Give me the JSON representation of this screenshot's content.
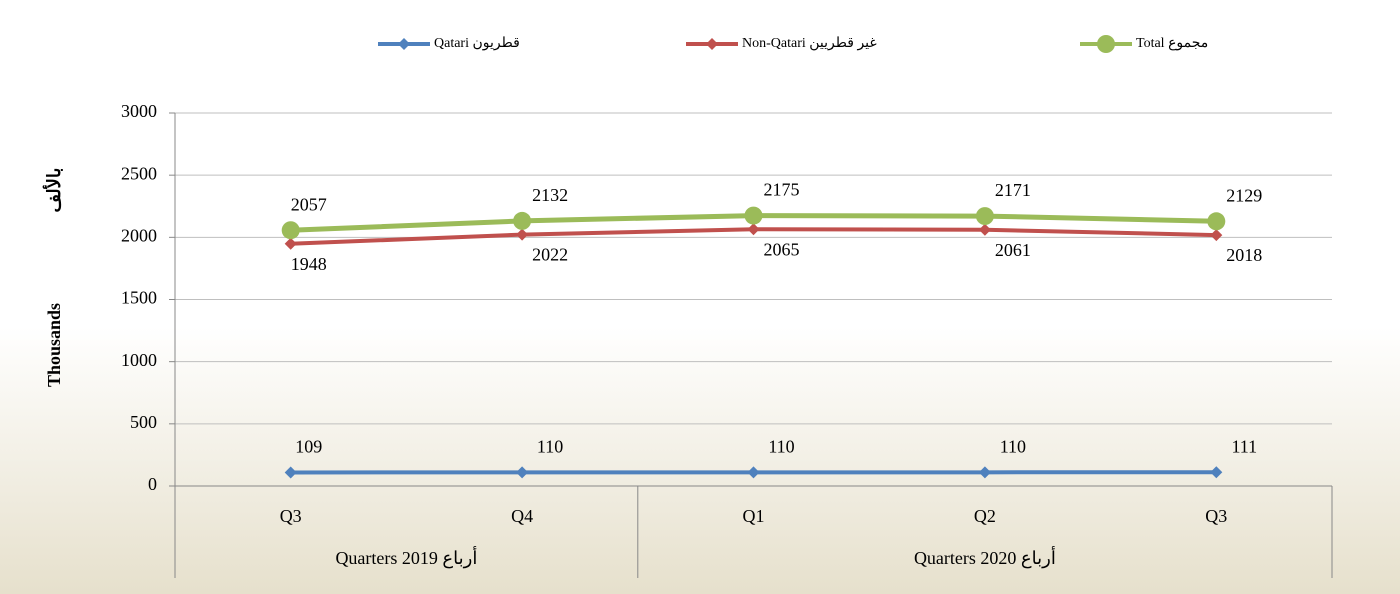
{
  "chart_data": {
    "type": "line",
    "categories": [
      "Q3",
      "Q4",
      "Q1",
      "Q2",
      "Q3"
    ],
    "groups": [
      {
        "label": "Quarters 2019 أرباع",
        "span": 2
      },
      {
        "label": "Quarters 2020 أرباع",
        "span": 3
      }
    ],
    "ylabel": "Thousands",
    "ylabel_ar": "بالألف",
    "series": [
      {
        "name": "Qatari قطريون",
        "color": "#4f81bd",
        "marker": "diamond",
        "values": [
          109,
          110,
          110,
          110,
          111
        ]
      },
      {
        "name": "Non-Qatari غير قطريين",
        "color": "#c0504d",
        "marker": "diamond",
        "values": [
          1948,
          2022,
          2065,
          2061,
          2018
        ]
      },
      {
        "name": "Total مجموع",
        "color": "#9bbb59",
        "marker": "circle",
        "values": [
          2057,
          2132,
          2175,
          2171,
          2129
        ]
      }
    ],
    "ylim": [
      0,
      3000
    ],
    "yticks": [
      0,
      500,
      1000,
      1500,
      2000,
      2500,
      3000
    ],
    "grid": true,
    "legend": "top"
  }
}
